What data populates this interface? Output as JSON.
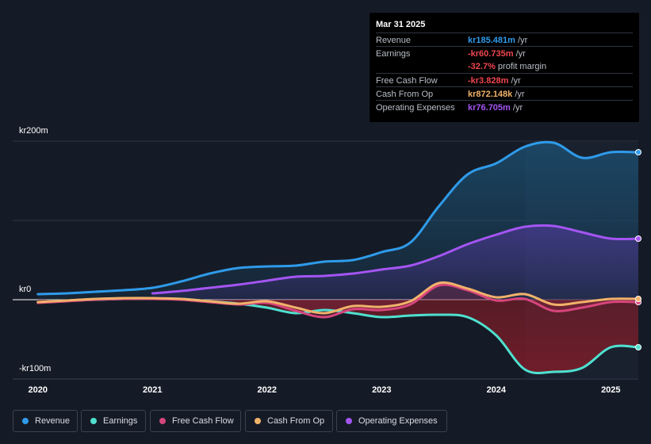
{
  "tooltip": {
    "date": "Mar 31 2025",
    "rows": [
      {
        "label": "Revenue",
        "value": "kr185.481m",
        "unit": "/yr",
        "color": "#2f9bea"
      },
      {
        "label": "Earnings",
        "value": "-kr60.735m",
        "unit": "/yr",
        "color": "#f0464f"
      },
      {
        "label": "",
        "value": "-32.7%",
        "unit": "profit margin",
        "color": "#f0464f"
      },
      {
        "label": "Free Cash Flow",
        "value": "-kr3.828m",
        "unit": "/yr",
        "color": "#f0464f"
      },
      {
        "label": "Cash From Op",
        "value": "kr872.148k",
        "unit": "/yr",
        "color": "#f1b26a"
      },
      {
        "label": "Operating Expenses",
        "value": "kr76.705m",
        "unit": "/yr",
        "color": "#a455f2"
      }
    ]
  },
  "legend": [
    {
      "label": "Revenue",
      "color": "#2f9bea"
    },
    {
      "label": "Earnings",
      "color": "#4fe0cf"
    },
    {
      "label": "Free Cash Flow",
      "color": "#d6457c"
    },
    {
      "label": "Cash From Op",
      "color": "#f1b26a"
    },
    {
      "label": "Operating Expenses",
      "color": "#a455f2"
    }
  ],
  "chart_data": {
    "type": "line",
    "title": "",
    "xlabel": "",
    "ylabel": "",
    "ylim": [
      -100,
      200
    ],
    "y_tick_labels": [
      "kr200m",
      "kr0",
      "-kr100m"
    ],
    "y_tick_values": [
      200,
      0,
      -100
    ],
    "x_tick_labels": [
      "2020",
      "2021",
      "2022",
      "2023",
      "2024",
      "2025"
    ],
    "x_tick_values": [
      2020,
      2021,
      2022,
      2023,
      2024,
      2025
    ],
    "xlim": [
      2019.78,
      2025.24
    ],
    "forecast_start": 2024.25,
    "series": [
      {
        "name": "Revenue",
        "color": "#2f9bea",
        "x": [
          2020.0,
          2020.25,
          2020.5,
          2020.75,
          2021.0,
          2021.25,
          2021.5,
          2021.75,
          2022.0,
          2022.25,
          2022.5,
          2022.75,
          2023.0,
          2023.25,
          2023.5,
          2023.75,
          2024.0,
          2024.25,
          2024.5,
          2024.75,
          2025.0,
          2025.24
        ],
        "values": [
          7,
          8,
          10,
          12,
          15,
          23,
          33,
          40,
          42,
          43,
          48,
          50,
          60,
          72,
          118,
          158,
          172,
          193,
          198,
          179,
          186,
          186
        ]
      },
      {
        "name": "Earnings",
        "color": "#4fe0cf",
        "x": [
          2020.0,
          2020.25,
          2020.5,
          2020.75,
          2021.0,
          2021.25,
          2021.5,
          2021.75,
          2022.0,
          2022.25,
          2022.5,
          2022.75,
          2023.0,
          2023.25,
          2023.5,
          2023.75,
          2024.0,
          2024.25,
          2024.5,
          2024.75,
          2025.0,
          2025.24
        ],
        "values": [
          -3,
          -1,
          0,
          1,
          1,
          1,
          -2,
          -5,
          -10,
          -17,
          -13,
          -17,
          -22,
          -20,
          -19,
          -22,
          -45,
          -88,
          -91,
          -86,
          -60,
          -60
        ]
      },
      {
        "name": "Free Cash Flow",
        "color": "#d6457c",
        "x": [
          2020.0,
          2020.25,
          2020.5,
          2020.75,
          2021.0,
          2021.25,
          2021.5,
          2021.75,
          2022.0,
          2022.25,
          2022.5,
          2022.75,
          2023.0,
          2023.25,
          2023.5,
          2023.75,
          2024.0,
          2024.25,
          2024.5,
          2024.75,
          2025.0,
          2025.24
        ],
        "values": [
          -4,
          -2,
          0,
          1,
          1,
          0,
          -3,
          -6,
          -4,
          -14,
          -22,
          -12,
          -13,
          -6,
          18,
          12,
          -1,
          1,
          -14,
          -10,
          -3,
          -3
        ]
      },
      {
        "name": "Cash From Op",
        "color": "#f1b26a",
        "x": [
          2020.0,
          2020.25,
          2020.5,
          2020.75,
          2021.0,
          2021.25,
          2021.5,
          2021.75,
          2022.0,
          2022.25,
          2022.5,
          2022.75,
          2023.0,
          2023.25,
          2023.5,
          2023.75,
          2024.0,
          2024.25,
          2024.5,
          2024.75,
          2025.0,
          2025.24
        ],
        "values": [
          -3,
          -1,
          1,
          2,
          2,
          1,
          -2,
          -5,
          -2,
          -10,
          -17,
          -8,
          -9,
          -2,
          21,
          14,
          3,
          7,
          -6,
          -3,
          1,
          1
        ]
      },
      {
        "name": "Operating Expenses",
        "color": "#a455f2",
        "x": [
          2021.0,
          2021.25,
          2021.5,
          2021.75,
          2022.0,
          2022.25,
          2022.5,
          2022.75,
          2023.0,
          2023.25,
          2023.5,
          2023.75,
          2024.0,
          2024.25,
          2024.5,
          2024.75,
          2025.0,
          2025.24
        ],
        "values": [
          8,
          11,
          15,
          19,
          24,
          29,
          30,
          33,
          38,
          43,
          55,
          70,
          82,
          92,
          93,
          85,
          77,
          77
        ]
      }
    ]
  }
}
